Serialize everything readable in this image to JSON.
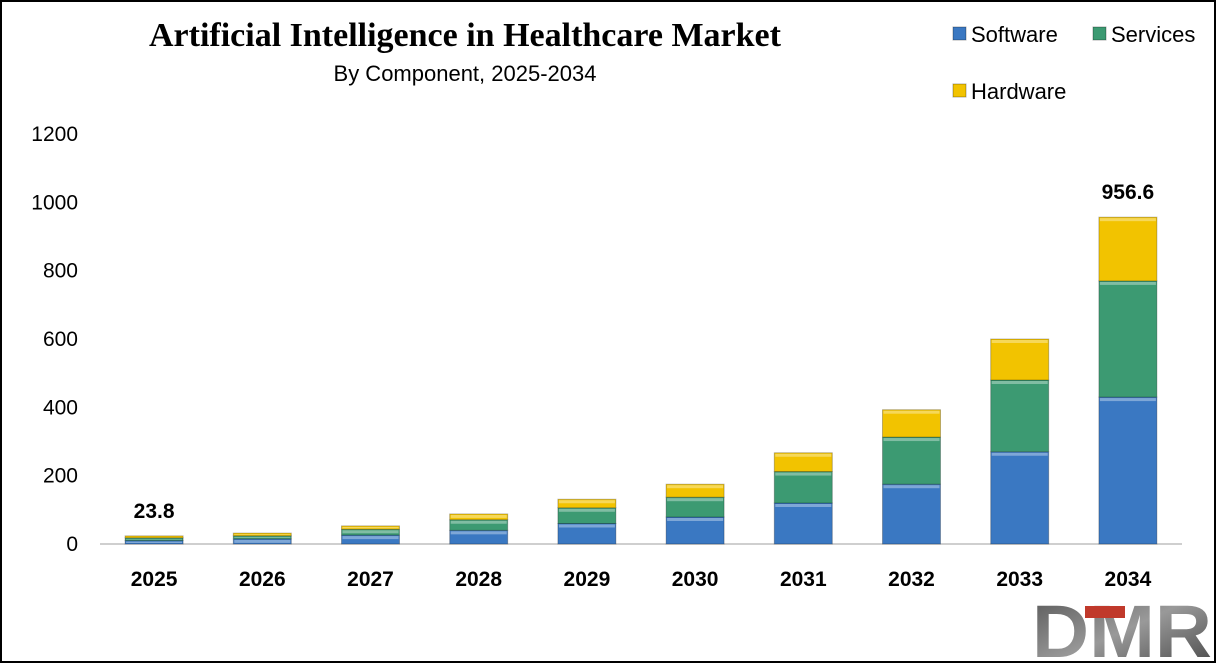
{
  "chart_data": {
    "type": "bar",
    "stacked": true,
    "title": "Artificial Intelligence in Healthcare Market",
    "subtitle": "By Component,  2025-2034",
    "categories": [
      "2025",
      "2026",
      "2027",
      "2028",
      "2029",
      "2030",
      "2031",
      "2032",
      "2033",
      "2034"
    ],
    "series": [
      {
        "name": "Software",
        "color": "#3a78c2",
        "values": [
          10,
          15,
          26,
          40,
          60,
          79,
          120,
          175,
          270,
          430
        ]
      },
      {
        "name": "Services",
        "color": "#3c9a72",
        "values": [
          8,
          9,
          17,
          31,
          46,
          58,
          92,
          138,
          210,
          340
        ]
      },
      {
        "name": "Hardware",
        "color": "#f2c300",
        "values": [
          5.8,
          8,
          10,
          17,
          25,
          38,
          55,
          80,
          120,
          186.6
        ]
      }
    ],
    "ylim": [
      0,
      1200
    ],
    "yticks": [
      "0",
      "200",
      "400",
      "600",
      "800",
      "1000",
      "1200"
    ],
    "data_labels": [
      {
        "category": "2025",
        "text": "23.8"
      },
      {
        "category": "2034",
        "text": "956.6"
      }
    ],
    "legend_position": "top-right",
    "grid": false
  },
  "logo": {
    "text": "DMR"
  }
}
